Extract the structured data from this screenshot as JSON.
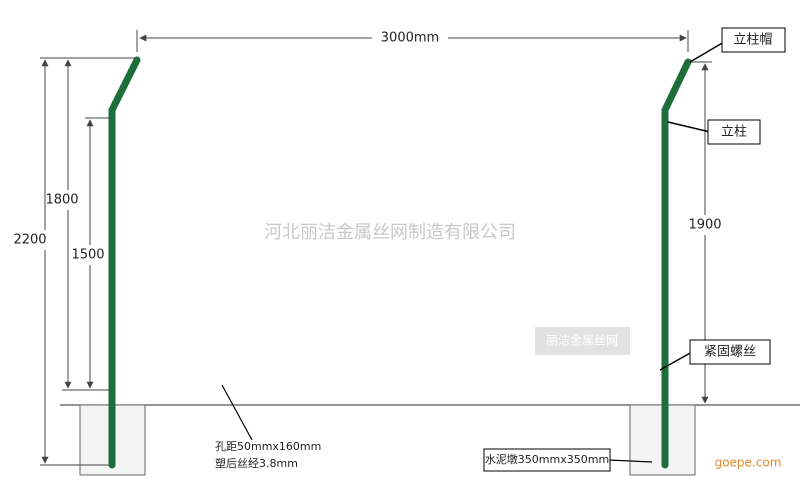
{
  "dimensions": {
    "width": "3000mm",
    "left_outer": "2200",
    "left_middle": "1800",
    "left_inner": "1500",
    "right": "1900"
  },
  "callouts": {
    "post_cap": "立柱帽",
    "post": "立柱",
    "bolt": "紧固螺丝",
    "base": "水泥墩350mmx350mm",
    "mesh_spacing": "孔距50mmx160mm",
    "wire_diameter": "塑后丝经3.8mm"
  },
  "watermarks": {
    "company": "河北丽洁金属丝网制造有限公司",
    "brand": "丽洁金属丝网",
    "site": "goepe.com"
  }
}
